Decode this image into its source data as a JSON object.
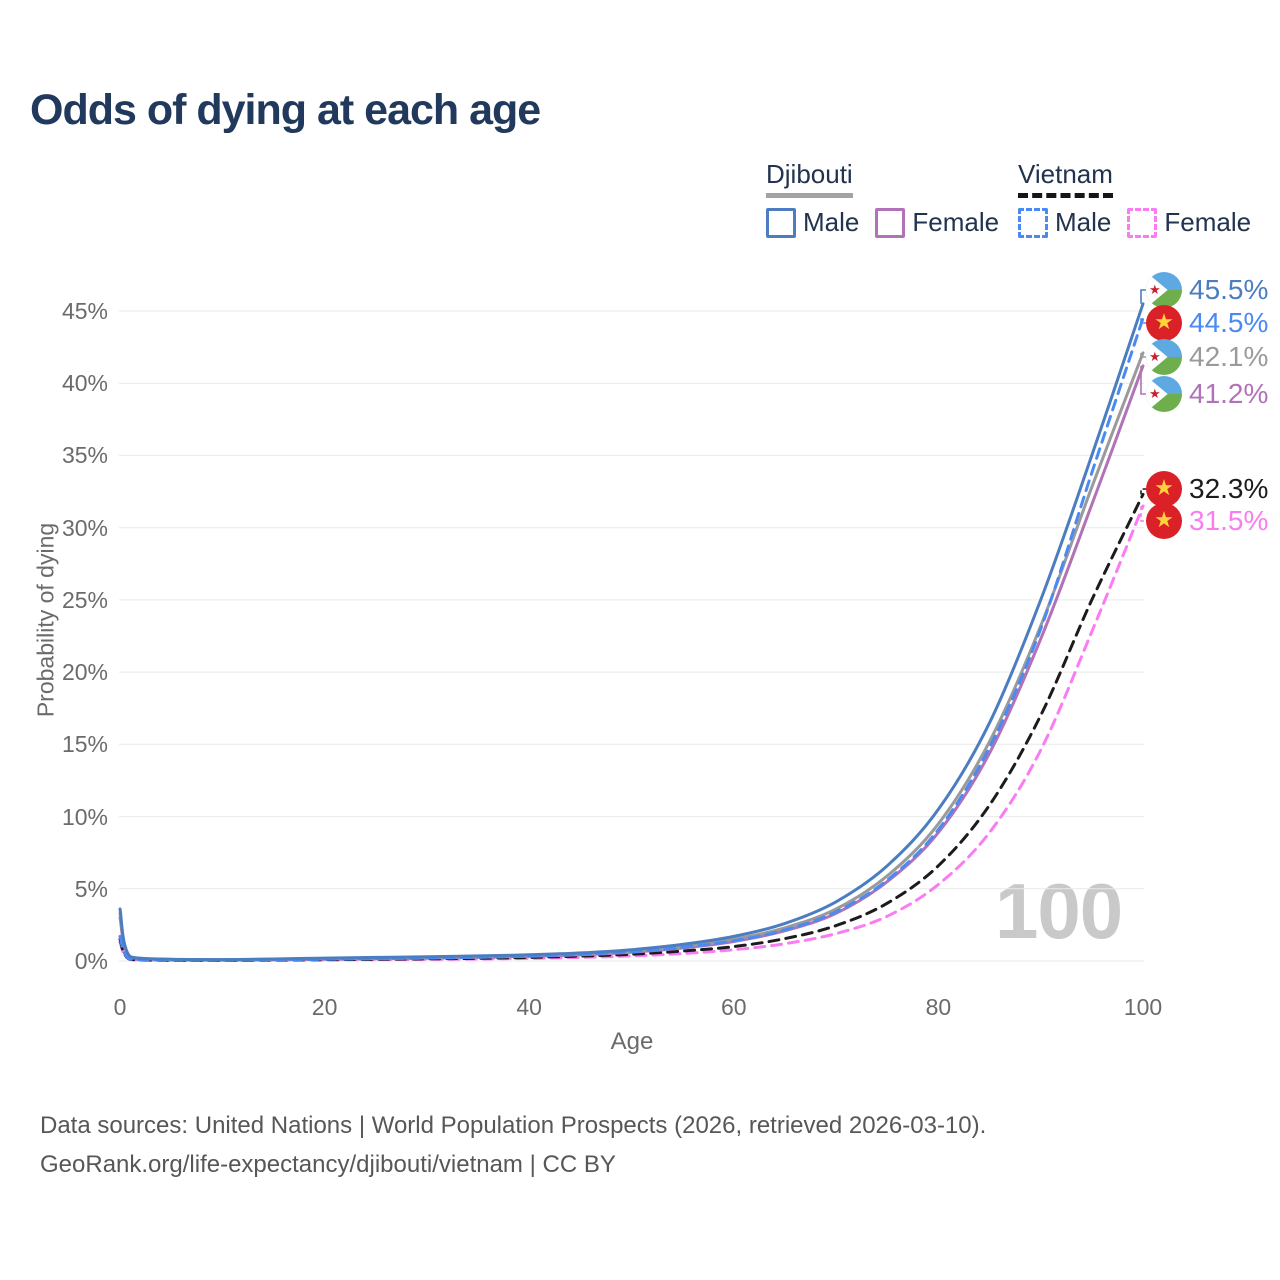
{
  "title": "Odds of dying at each age",
  "watermark": {
    "text": "100"
  },
  "legend": {
    "groups": [
      {
        "label": "Djibouti",
        "line_style": "solid",
        "underline_color": "#a3a3a3",
        "items": [
          {
            "label": "Male",
            "color": "#4c7dc0"
          },
          {
            "label": "Female",
            "color": "#b172b7"
          }
        ]
      },
      {
        "label": "Vietnam",
        "line_style": "dashed",
        "underline_color": "#161616",
        "items": [
          {
            "label": "Male",
            "color": "#4b8af2"
          },
          {
            "label": "Female",
            "color": "#fb7cf2"
          }
        ]
      }
    ]
  },
  "chart_data": {
    "type": "line",
    "title": "Odds of dying at each age",
    "xlabel": "Age",
    "ylabel": "Probability of dying",
    "x_ticks": [
      0,
      20,
      40,
      60,
      80,
      100
    ],
    "y_ticks_pct": [
      0,
      5,
      10,
      15,
      20,
      25,
      30,
      35,
      40,
      45
    ],
    "xlim": [
      0,
      100
    ],
    "ylim_pct": [
      0,
      47
    ],
    "grid": "horizontal",
    "legend_position": "top-right",
    "age_counter": "100",
    "ages": [
      0,
      1,
      5,
      10,
      15,
      20,
      25,
      30,
      35,
      40,
      45,
      50,
      55,
      60,
      65,
      70,
      75,
      80,
      85,
      90,
      95,
      100
    ],
    "series": [
      {
        "name": "Djibouti Male",
        "country": "Djibouti",
        "sex": "male",
        "color": "#4c7dc0",
        "dash": false,
        "flag": "djibouti",
        "end_label": "45.5%",
        "values_pct": [
          3.6,
          0.3,
          0.12,
          0.1,
          0.14,
          0.2,
          0.25,
          0.29,
          0.35,
          0.43,
          0.56,
          0.78,
          1.15,
          1.7,
          2.6,
          4.1,
          6.6,
          10.5,
          16.5,
          25.0,
          35.0,
          45.5
        ]
      },
      {
        "name": "Vietnam Male",
        "country": "Vietnam",
        "sex": "male",
        "color": "#4b8af2",
        "dash": true,
        "flag": "vietnam",
        "end_label": "44.5%",
        "values_pct": [
          1.7,
          0.12,
          0.06,
          0.05,
          0.08,
          0.12,
          0.16,
          0.2,
          0.26,
          0.34,
          0.46,
          0.64,
          0.94,
          1.4,
          2.15,
          3.4,
          5.6,
          9.1,
          14.8,
          23.0,
          33.8,
          44.5
        ]
      },
      {
        "name": "Djibouti Both sexes",
        "country": "Djibouti",
        "sex": "both",
        "color": "#9a9a9a",
        "dash": false,
        "flag": "djibouti",
        "end_label": "42.1%",
        "values_pct": [
          3.3,
          0.28,
          0.11,
          0.09,
          0.12,
          0.17,
          0.21,
          0.25,
          0.3,
          0.38,
          0.49,
          0.68,
          1.0,
          1.5,
          2.3,
          3.6,
          5.9,
          9.5,
          15.2,
          23.2,
          32.8,
          42.1
        ]
      },
      {
        "name": "Djibouti Female",
        "country": "Djibouti",
        "sex": "female",
        "color": "#b172b7",
        "dash": false,
        "flag": "djibouti",
        "end_label": "41.2%",
        "values_pct": [
          3.0,
          0.26,
          0.1,
          0.08,
          0.1,
          0.14,
          0.17,
          0.21,
          0.26,
          0.33,
          0.43,
          0.61,
          0.9,
          1.35,
          2.1,
          3.3,
          5.5,
          8.9,
          14.4,
          22.3,
          31.6,
          41.2
        ]
      },
      {
        "name": "Vietnam Both sexes",
        "country": "Vietnam",
        "sex": "both",
        "color": "#1c1c1c",
        "dash": true,
        "flag": "vietnam",
        "end_label": "32.3%",
        "values_pct": [
          1.5,
          0.11,
          0.05,
          0.04,
          0.06,
          0.09,
          0.12,
          0.15,
          0.19,
          0.25,
          0.34,
          0.47,
          0.69,
          1.0,
          1.55,
          2.45,
          4.0,
          6.6,
          10.8,
          17.0,
          25.0,
          32.3
        ]
      },
      {
        "name": "Vietnam Female",
        "country": "Vietnam",
        "sex": "female",
        "color": "#fb7cf2",
        "dash": true,
        "flag": "vietnam",
        "end_label": "31.5%",
        "values_pct": [
          1.3,
          0.1,
          0.04,
          0.035,
          0.05,
          0.07,
          0.09,
          0.11,
          0.14,
          0.18,
          0.25,
          0.35,
          0.52,
          0.78,
          1.2,
          1.9,
          3.1,
          5.3,
          8.9,
          14.6,
          22.8,
          31.5
        ]
      }
    ]
  },
  "footer": {
    "line1": "Data sources: United Nations | World Population Prospects (2026, retrieved 2026-03-10).",
    "line2": "GeoRank.org/life-expectancy/djibouti/vietnam | CC BY"
  }
}
